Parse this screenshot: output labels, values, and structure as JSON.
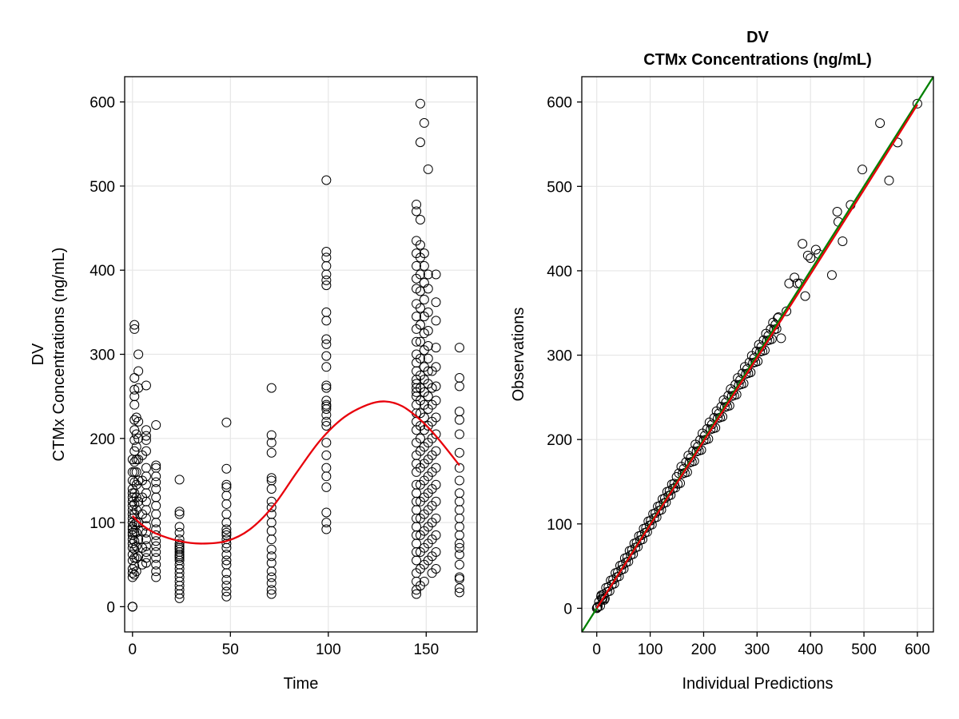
{
  "chart_data": [
    {
      "type": "scatter",
      "id": "left",
      "title": "",
      "subtitle": "",
      "xlabel": "Time",
      "ylabel_lines": [
        "DV",
        "CTMx Concentrations (ng/mL)"
      ],
      "xlim": [
        -4,
        176
      ],
      "ylim": [
        -30,
        630
      ],
      "xticks": [
        0,
        50,
        100,
        150
      ],
      "yticks": [
        0,
        100,
        200,
        300,
        400,
        500,
        600
      ],
      "grid": true,
      "series": [
        {
          "marker": "open-circle",
          "color": "#000000",
          "groups": [
            {
              "x": 0,
              "y": [
                0,
                0,
                0,
                0,
                35,
                40,
                45,
                55,
                62,
                70,
                75,
                80,
                85,
                88,
                92,
                95,
                100,
                105,
                110,
                115,
                120,
                125,
                130,
                135,
                140,
                150,
                160,
                175
              ]
            },
            {
              "x": 1,
              "y": [
                38,
                48,
                58,
                68,
                78,
                88,
                98,
                110,
                122,
                135,
                148,
                160,
                172,
                185,
                198,
                210,
                222,
                240,
                250,
                258,
                272,
                330,
                335
              ]
            },
            {
              "x": 2,
              "y": [
                42,
                58,
                72,
                88,
                100,
                115,
                130,
                145,
                160,
                175,
                190,
                205,
                225
              ]
            },
            {
              "x": 3,
              "y": [
                60,
                80,
                100,
                125,
                150,
                175,
                200,
                220,
                260,
                280,
                300
              ]
            },
            {
              "x": 5,
              "y": [
                50,
                70,
                90,
                110,
                130,
                150,
                180
              ]
            },
            {
              "x": 7,
              "y": [
                52,
                58,
                65,
                72,
                80,
                88,
                96,
                105,
                115,
                125,
                135,
                145,
                155,
                165,
                185,
                198,
                203,
                210,
                263
              ]
            },
            {
              "x": 12,
              "y": [
                35,
                42,
                50,
                58,
                65,
                72,
                78,
                85,
                92,
                100,
                110,
                120,
                130,
                140,
                148,
                155,
                165,
                168,
                216
              ]
            },
            {
              "x": 24,
              "y": [
                10,
                15,
                20,
                25,
                30,
                35,
                40,
                45,
                50,
                55,
                58,
                60,
                62,
                65,
                68,
                70,
                72,
                75,
                80,
                88,
                95,
                110,
                113,
                151
              ]
            },
            {
              "x": 48,
              "y": [
                12,
                18,
                25,
                32,
                40,
                50,
                55,
                62,
                70,
                75,
                80,
                85,
                88,
                92,
                100,
                110,
                122,
                132,
                142,
                145,
                164,
                219
              ]
            },
            {
              "x": 71,
              "y": [
                15,
                20,
                28,
                35,
                42,
                52,
                60,
                68,
                80,
                90,
                100,
                110,
                118,
                125,
                140,
                150,
                153,
                183,
                195,
                204,
                260
              ]
            },
            {
              "x": 99,
              "y": [
                92,
                100,
                112,
                142,
                155,
                165,
                180,
                195,
                215,
                220,
                228,
                235,
                238,
                240,
                245,
                260,
                263,
                285,
                298,
                312,
                318,
                340,
                350,
                382,
                388,
                395,
                405,
                415,
                422,
                507
              ]
            },
            {
              "x": 145,
              "y": [
                15,
                20,
                30,
                40,
                55,
                65,
                75,
                85,
                95,
                105,
                115,
                125,
                135,
                145,
                160,
                170,
                180,
                195,
                210,
                220,
                230,
                240,
                250,
                255,
                260,
                265,
                270,
                280,
                290,
                300,
                315,
                330,
                345,
                360,
                378,
                390,
                405,
                420,
                435,
                470,
                478
              ]
            },
            {
              "x": 147,
              "y": [
                25,
                45,
                65,
                85,
                105,
                125,
                145,
                165,
                185,
                200,
                215,
                230,
                245,
                260,
                275,
                295,
                315,
                335,
                355,
                375,
                395,
                415,
                430,
                460,
                552,
                598
              ]
            },
            {
              "x": 149,
              "y": [
                30,
                50,
                70,
                90,
                110,
                130,
                150,
                170,
                190,
                210,
                225,
                240,
                255,
                270,
                285,
                305,
                325,
                345,
                365,
                385,
                405,
                420,
                575
              ]
            },
            {
              "x": 151,
              "y": [
                55,
                75,
                95,
                115,
                135,
                155,
                175,
                195,
                215,
                235,
                250,
                265,
                280,
                295,
                310,
                328,
                350,
                378,
                395,
                520
              ]
            },
            {
              "x": 153,
              "y": [
                40,
                60,
                80,
                100,
                120,
                140,
                160,
                180,
                200,
                220,
                240,
                260,
                280
              ]
            },
            {
              "x": 155,
              "y": [
                45,
                65,
                85,
                105,
                125,
                145,
                165,
                185,
                205,
                225,
                245,
                262,
                285,
                308,
                340,
                362,
                395
              ]
            },
            {
              "x": 167,
              "y": [
                17,
                22,
                33,
                35,
                50,
                62,
                70,
                75,
                85,
                95,
                105,
                115,
                125,
                135,
                150,
                165,
                183,
                205,
                222,
                232,
                262,
                272,
                308
              ]
            }
          ]
        },
        {
          "type": "line",
          "style": "smooth",
          "color": "#e8000b",
          "x": [
            0,
            5,
            12,
            24,
            35,
            48,
            60,
            72,
            84,
            96,
            108,
            120,
            129,
            138,
            148,
            156,
            167
          ],
          "y": [
            108,
            97,
            87,
            78,
            75,
            78,
            92,
            120,
            160,
            198,
            225,
            240,
            244,
            238,
            220,
            200,
            168
          ]
        }
      ]
    },
    {
      "type": "scatter",
      "id": "right",
      "title": "DV",
      "subtitle": "CTMx Concentrations (ng/mL)",
      "xlabel": "Individual Predictions",
      "ylabel": "Observations",
      "xlim": [
        -28,
        630
      ],
      "ylim": [
        -28,
        630
      ],
      "xticks": [
        0,
        100,
        200,
        300,
        400,
        500,
        600
      ],
      "yticks": [
        0,
        100,
        200,
        300,
        400,
        500,
        600
      ],
      "grid": true,
      "series": [
        {
          "marker": "open-circle",
          "color": "#000000",
          "band": {
            "x_from": 2,
            "x_to": 340,
            "step": 2.2,
            "spread": [
              0,
              3.5,
              -3.5,
              7,
              -7,
              10.5
            ],
            "extra_spread_from": 150
          },
          "points": [
            [
              0,
              0
            ],
            [
              1,
              1
            ],
            [
              10,
              12
            ],
            [
              8,
              14
            ],
            [
              14,
              10
            ],
            [
              340,
              345
            ],
            [
              345,
              320
            ],
            [
              355,
              352
            ],
            [
              360,
              385
            ],
            [
              370,
              392
            ],
            [
              375,
              385
            ],
            [
              380,
              385
            ],
            [
              385,
              432
            ],
            [
              390,
              370
            ],
            [
              395,
              418
            ],
            [
              400,
              415
            ],
            [
              410,
              425
            ],
            [
              415,
              420
            ],
            [
              440,
              395
            ],
            [
              450,
              470
            ],
            [
              452,
              458
            ],
            [
              460,
              435
            ],
            [
              475,
              478
            ],
            [
              497,
              520
            ],
            [
              530,
              575
            ],
            [
              547,
              507
            ],
            [
              563,
              552
            ],
            [
              600,
              598
            ]
          ]
        },
        {
          "type": "line",
          "name": "",
          "color": "#008000",
          "x": [
            -28,
            630
          ],
          "y": [
            -28,
            630
          ]
        },
        {
          "type": "line",
          "name": "",
          "color": "#e8000b",
          "x": [
            0,
            100,
            200,
            300,
            400,
            500,
            600
          ],
          "y": [
            0,
            99,
            198,
            297,
            396,
            496,
            597
          ]
        }
      ]
    }
  ]
}
